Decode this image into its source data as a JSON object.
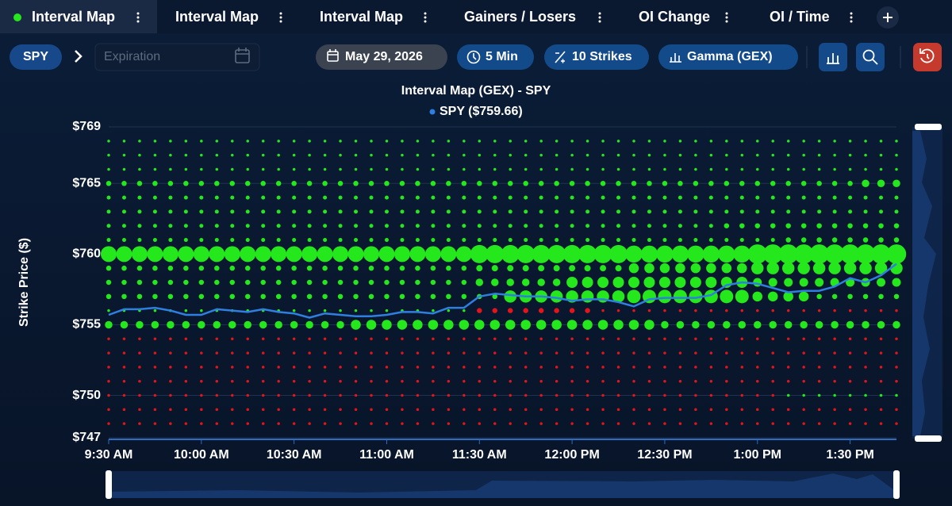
{
  "tabs": [
    "Interval Map",
    "Interval Map",
    "Interval Map",
    "Gainers / Losers",
    "OI Change",
    "OI / Time"
  ],
  "toolbar": {
    "symbol": "SPY",
    "expiration_placeholder": "Expiration",
    "date": "May 29, 2026",
    "interval": "5 Min",
    "strikes": "10 Strikes",
    "metric": "Gamma (GEX)"
  },
  "chart_data": {
    "type": "bubble",
    "title": "Interval Map (GEX) - SPY",
    "y_label": "Strike Price ($)",
    "ylim": [
      747,
      769
    ],
    "yticks": [
      {
        "value": 769,
        "label": "$769"
      },
      {
        "value": 765,
        "label": "$765"
      },
      {
        "value": 760,
        "label": "$760"
      },
      {
        "value": 755,
        "label": "$755"
      },
      {
        "value": 750,
        "label": "$750"
      },
      {
        "value": 747,
        "label": "$747"
      }
    ],
    "grid": true,
    "positive_color": "#24e81c",
    "negative_color": "#e3141a",
    "categories": [
      "9:30 AM",
      null,
      null,
      null,
      null,
      null,
      "10:00 AM",
      null,
      null,
      null,
      null,
      null,
      "10:30 AM",
      null,
      null,
      null,
      null,
      null,
      "11:00 AM",
      null,
      null,
      null,
      null,
      null,
      "11:30 AM",
      null,
      null,
      null,
      null,
      null,
      "12:00 PM",
      null,
      null,
      null,
      null,
      null,
      "12:30 PM",
      null,
      null,
      null,
      null,
      null,
      "1:00 PM",
      null,
      null,
      null,
      null,
      null,
      "1:30 PM",
      null,
      null,
      null
    ],
    "strikes": [
      768,
      767,
      766,
      765,
      764,
      763,
      762,
      761,
      760,
      759,
      758,
      757,
      756,
      755,
      754,
      753,
      752,
      751,
      750,
      749,
      748
    ],
    "gex": [
      [
        1,
        1,
        1,
        1,
        1,
        1,
        1,
        1,
        1,
        1,
        1,
        1,
        1,
        1,
        1,
        1,
        1,
        1,
        1,
        1,
        1,
        1,
        1,
        1,
        1,
        1,
        1,
        1,
        1,
        1,
        1,
        1,
        1,
        1,
        1,
        1,
        1,
        1,
        1,
        1,
        1,
        1,
        1,
        1,
        1,
        1,
        1,
        1,
        1,
        1,
        1,
        1
      ],
      [
        1,
        1,
        1,
        1,
        1,
        1,
        1,
        1,
        1,
        1,
        1,
        1,
        1,
        1,
        1,
        1,
        1,
        1,
        1,
        1,
        1,
        1,
        1,
        1,
        1,
        1,
        1,
        1,
        1,
        1,
        1,
        1,
        1,
        1,
        1,
        1,
        1,
        1,
        1,
        1,
        1,
        1,
        1,
        1,
        1,
        1,
        1,
        1,
        1,
        1,
        1,
        1
      ],
      [
        1,
        1,
        1,
        1,
        1,
        1,
        1,
        1,
        1,
        1,
        1,
        1,
        1,
        1,
        1,
        1,
        1,
        1,
        1,
        1,
        1,
        1,
        1,
        1,
        1,
        1,
        1,
        1,
        1,
        1,
        1,
        1,
        1,
        1,
        1,
        1,
        1,
        1,
        1,
        1,
        1,
        1,
        1,
        1,
        1,
        1,
        1,
        1,
        1,
        1,
        1,
        1
      ],
      [
        3,
        3,
        3,
        3,
        3,
        3,
        3,
        3,
        3,
        3,
        3,
        3,
        3,
        3,
        3,
        3,
        3,
        3,
        3,
        3,
        3,
        3,
        3,
        3,
        3,
        3,
        3,
        3,
        3,
        3,
        3,
        3,
        3,
        3,
        3,
        3,
        3,
        3,
        3,
        3,
        3,
        3,
        3,
        3,
        3,
        3,
        3,
        3,
        3,
        5,
        5,
        5
      ],
      [
        2,
        2,
        2,
        2,
        2,
        2,
        2,
        2,
        2,
        2,
        2,
        2,
        2,
        2,
        2,
        2,
        2,
        2,
        2,
        2,
        2,
        2,
        2,
        2,
        2,
        2,
        2,
        2,
        2,
        2,
        2,
        2,
        2,
        2,
        2,
        2,
        2,
        2,
        2,
        2,
        2,
        2,
        2,
        2,
        2,
        2,
        2,
        2,
        2,
        2,
        2,
        2
      ],
      [
        2,
        2,
        2,
        2,
        2,
        2,
        2,
        2,
        2,
        2,
        2,
        2,
        2,
        2,
        2,
        2,
        2,
        2,
        2,
        2,
        2,
        2,
        2,
        2,
        2,
        2,
        2,
        2,
        2,
        2,
        2,
        2,
        2,
        2,
        2,
        2,
        2,
        2,
        2,
        2,
        2,
        2,
        2,
        2,
        2,
        2,
        2,
        2,
        2,
        2,
        2,
        2
      ],
      [
        2,
        2,
        2,
        2,
        2,
        2,
        2,
        2,
        2,
        2,
        2,
        2,
        2,
        2,
        2,
        2,
        2,
        2,
        2,
        2,
        2,
        2,
        2,
        2,
        2,
        2,
        2,
        2,
        2,
        2,
        2,
        2,
        2,
        2,
        2,
        2,
        2,
        2,
        2,
        2,
        3,
        3,
        3,
        3,
        3,
        3,
        3,
        3,
        3,
        3,
        3,
        3
      ],
      [
        2,
        2,
        2,
        2,
        2,
        2,
        2,
        2,
        2,
        2,
        2,
        2,
        2,
        2,
        2,
        2,
        2,
        2,
        2,
        2,
        2,
        2,
        2,
        2,
        2,
        2,
        2,
        2,
        2,
        2,
        2,
        2,
        2,
        2,
        2,
        2,
        2,
        2,
        2,
        2,
        2,
        2,
        2,
        2,
        3,
        3,
        3,
        3,
        3,
        3,
        3,
        3
      ],
      [
        12,
        12,
        12,
        12,
        12,
        12,
        12,
        12,
        12,
        12,
        12,
        12,
        12,
        12,
        12,
        12,
        12,
        12,
        12,
        12,
        12,
        12,
        12,
        12,
        14,
        14,
        14,
        14,
        14,
        14,
        14,
        14,
        14,
        14,
        13,
        13,
        13,
        13,
        13,
        13,
        13,
        13,
        15,
        15,
        15,
        15,
        15,
        15,
        15,
        15,
        15,
        15
      ],
      [
        3,
        3,
        3,
        3,
        3,
        3,
        3,
        3,
        3,
        3,
        3,
        3,
        3,
        3,
        3,
        3,
        3,
        3,
        3,
        3,
        3,
        3,
        3,
        3,
        4,
        4,
        4,
        4,
        4,
        4,
        4,
        4,
        4,
        4,
        7,
        7,
        7,
        7,
        7,
        7,
        7,
        7,
        9,
        9,
        9,
        9,
        9,
        9,
        9,
        9,
        9,
        9
      ],
      [
        3,
        3,
        3,
        3,
        3,
        3,
        3,
        3,
        3,
        3,
        3,
        3,
        3,
        3,
        3,
        3,
        3,
        3,
        3,
        3,
        3,
        3,
        3,
        3,
        5,
        5,
        5,
        5,
        5,
        5,
        8,
        8,
        8,
        8,
        8,
        8,
        8,
        8,
        8,
        8,
        8,
        8,
        6,
        6,
        6,
        6,
        6,
        6,
        6,
        6,
        6,
        6
      ],
      [
        3,
        3,
        3,
        3,
        3,
        3,
        3,
        3,
        3,
        3,
        3,
        3,
        3,
        3,
        3,
        3,
        3,
        3,
        3,
        3,
        3,
        3,
        3,
        3,
        3,
        3,
        9,
        9,
        9,
        9,
        9,
        9,
        9,
        9,
        10,
        10,
        10,
        10,
        10,
        10,
        10,
        10,
        7,
        7,
        7,
        7,
        3,
        3,
        3,
        3,
        3,
        3
      ],
      [
        1,
        1,
        1,
        1,
        1,
        1,
        1,
        1,
        1,
        1,
        1,
        1,
        1,
        1,
        1,
        1,
        1,
        1,
        1,
        1,
        1,
        1,
        1,
        1,
        -3,
        -3,
        -3,
        -3,
        -3,
        -3,
        -3,
        -3,
        -1,
        -1,
        -1,
        -1,
        -1,
        -1,
        -1,
        -1,
        -1,
        -1,
        -1,
        -1,
        -1,
        -1,
        -1,
        -1,
        -1,
        -1,
        -1,
        -1
      ],
      [
        5,
        5,
        5,
        5,
        5,
        5,
        5,
        5,
        5,
        5,
        5,
        5,
        5,
        5,
        5,
        5,
        7,
        7,
        7,
        7,
        7,
        7,
        7,
        7,
        7,
        7,
        7,
        7,
        7,
        7,
        7,
        7,
        7,
        7,
        7,
        7,
        5,
        5,
        5,
        5,
        5,
        5,
        5,
        5,
        5,
        5,
        5,
        5,
        5,
        5,
        5,
        5
      ],
      [
        -1,
        -1,
        -1,
        -1,
        -1,
        -1,
        -1,
        -1,
        -1,
        -1,
        -1,
        -1,
        -1,
        -1,
        -1,
        -1,
        -1,
        -1,
        -1,
        -1,
        -1,
        -1,
        -1,
        -1,
        -1,
        -1,
        -1,
        -1,
        -1,
        -1,
        -1,
        -1,
        -1,
        -1,
        -1,
        -1,
        -1,
        -1,
        -1,
        -1,
        -1,
        -1,
        -1,
        -1,
        -1,
        -1,
        -1,
        -1,
        -1,
        -1,
        -1,
        -1
      ],
      [
        -1,
        -1,
        -1,
        -1,
        -1,
        -1,
        -1,
        -1,
        -1,
        -1,
        -1,
        -1,
        -1,
        -1,
        -1,
        -1,
        -1,
        -1,
        -1,
        -1,
        -1,
        -1,
        -1,
        -1,
        -1,
        -1,
        -1,
        -1,
        -1,
        -1,
        -1,
        -1,
        -1,
        -1,
        -1,
        -1,
        -1,
        -1,
        -1,
        -1,
        -1,
        -1,
        -1,
        -1,
        -1,
        -1,
        -1,
        -1,
        -1,
        -1,
        -1,
        -1
      ],
      [
        -1,
        -1,
        -1,
        -1,
        -1,
        -1,
        -1,
        -1,
        -1,
        -1,
        -1,
        -1,
        -1,
        -1,
        -1,
        -1,
        -1,
        -1,
        -1,
        -1,
        -1,
        -1,
        -1,
        -1,
        -1,
        -1,
        -1,
        -1,
        -1,
        -1,
        -1,
        -1,
        -1,
        -1,
        -1,
        -1,
        -1,
        -1,
        -1,
        -1,
        -1,
        -1,
        -1,
        -1,
        -1,
        -1,
        -1,
        -1,
        -1,
        -1,
        -1,
        -1
      ],
      [
        -1,
        -1,
        -1,
        -1,
        -1,
        -1,
        -1,
        -1,
        -1,
        -1,
        -1,
        -1,
        -1,
        -1,
        -1,
        -1,
        -1,
        -1,
        -1,
        -1,
        -1,
        -1,
        -1,
        -1,
        -1,
        -1,
        -1,
        -1,
        -1,
        -1,
        -1,
        -1,
        -1,
        -1,
        -1,
        -1,
        -1,
        -1,
        -1,
        -1,
        -1,
        -1,
        -1,
        -1,
        -1,
        -1,
        -1,
        -1,
        -1,
        -1,
        -1,
        -1
      ],
      [
        -1,
        -1,
        -1,
        -1,
        -1,
        -1,
        -1,
        -1,
        -1,
        -1,
        -1,
        -1,
        -1,
        -1,
        -1,
        -1,
        -1,
        -1,
        -1,
        -1,
        -1,
        -1,
        -1,
        -1,
        -1,
        -1,
        -1,
        -1,
        -1,
        -1,
        -1,
        -1,
        -1,
        -1,
        -1,
        -1,
        -1,
        -1,
        -1,
        -1,
        -1,
        -1,
        -1,
        -1,
        1,
        1,
        1,
        1,
        1,
        1,
        1,
        1
      ],
      [
        -1,
        -1,
        -1,
        -1,
        -1,
        -1,
        -1,
        -1,
        -1,
        -1,
        -1,
        -1,
        -1,
        -1,
        -1,
        -1,
        -1,
        -1,
        -1,
        -1,
        -1,
        -1,
        -1,
        -1,
        -1,
        -1,
        -1,
        -1,
        -1,
        -1,
        -1,
        -1,
        -1,
        -1,
        -1,
        -1,
        -1,
        -1,
        -1,
        -1,
        -1,
        -1,
        -1,
        -1,
        -1,
        -1,
        -1,
        -1,
        -1,
        -1,
        -1,
        -1
      ],
      [
        -1,
        -1,
        -1,
        -1,
        -1,
        -1,
        -1,
        -1,
        -1,
        -1,
        -1,
        -1,
        -1,
        -1,
        -1,
        -1,
        -1,
        -1,
        -1,
        -1,
        -1,
        -1,
        -1,
        -1,
        -1,
        -1,
        -1,
        -1,
        -1,
        -1,
        -1,
        -1,
        -1,
        -1,
        -1,
        -1,
        -1,
        -1,
        -1,
        -1,
        -1,
        -1,
        -1,
        -1,
        -1,
        -1,
        -1,
        -1,
        -1,
        -1,
        -1,
        -1
      ]
    ],
    "series": [
      {
        "name": "SPY ($759.66)",
        "color": "#2f7fe0",
        "values": [
          755.7,
          756.1,
          756.1,
          756.2,
          756.0,
          755.7,
          755.7,
          756.1,
          756.0,
          755.9,
          756.1,
          755.9,
          755.8,
          755.5,
          755.8,
          755.7,
          755.6,
          755.6,
          755.7,
          755.9,
          755.9,
          755.8,
          756.2,
          756.2,
          757.0,
          757.2,
          757.1,
          757.0,
          757.0,
          756.9,
          756.7,
          756.8,
          756.8,
          756.6,
          756.3,
          756.8,
          756.9,
          756.9,
          756.9,
          757.1,
          757.8,
          758.0,
          757.9,
          757.6,
          757.3,
          757.4,
          757.4,
          757.7,
          758.3,
          758.0,
          758.5,
          759.3
        ]
      }
    ]
  }
}
